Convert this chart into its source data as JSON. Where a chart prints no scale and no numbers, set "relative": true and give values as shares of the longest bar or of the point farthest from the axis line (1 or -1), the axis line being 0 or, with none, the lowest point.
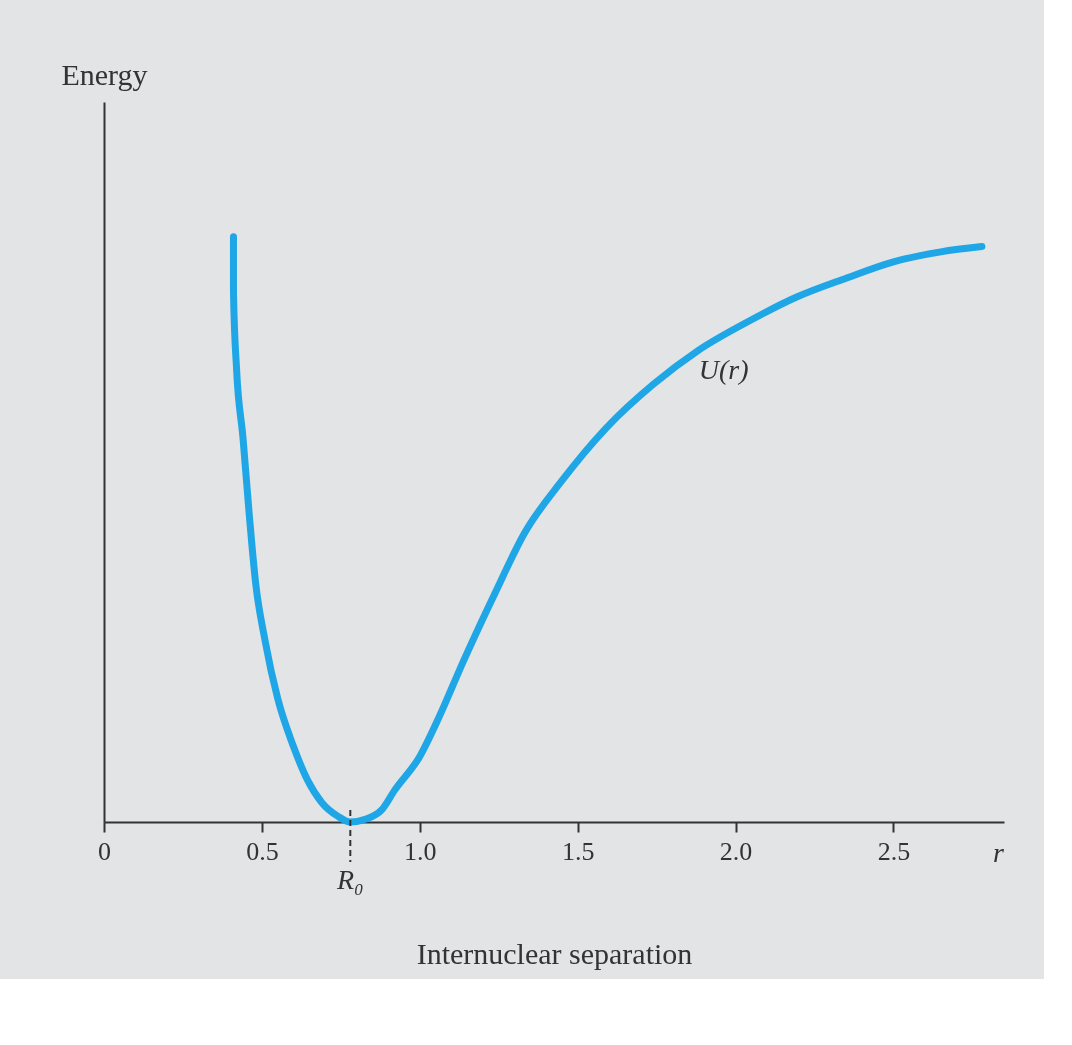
{
  "chart_data": {
    "type": "line",
    "relative": true,
    "xlabel": "Internuclear separation",
    "ylabel": "Energy",
    "x": [
      0.41,
      0.41,
      0.42,
      0.44,
      0.46,
      0.48,
      0.51,
      0.55,
      0.6,
      0.645,
      0.69,
      0.74,
      0.78,
      0.83,
      0.88,
      0.92,
      1.0,
      1.06,
      1.14,
      1.24,
      1.33,
      1.45,
      1.59,
      1.74,
      1.88,
      2.04,
      2.19,
      2.35,
      2.5,
      2.65,
      2.78
    ],
    "series": [
      {
        "color": "#1ea6e6",
        "values": [
          1.0,
          0.904,
          0.772,
          0.657,
          0.525,
          0.409,
          0.31,
          0.211,
          0.129,
          0.071,
          0.033,
          0.01,
          0,
          0.005,
          0.021,
          0.054,
          0.112,
          0.178,
          0.277,
          0.393,
          0.492,
          0.583,
          0.673,
          0.748,
          0.805,
          0.855,
          0.896,
          0.929,
          0.957,
          0.974,
          0.983
        ]
      }
    ],
    "xlim": [
      0,
      2.85
    ],
    "xticks": [
      0,
      0.5,
      {
        "value": 1,
        "label": "1.0"
      },
      1.5,
      {
        "value": 2,
        "label": "2.0"
      },
      2.5
    ],
    "ref_lines": [
      {
        "axis": "x",
        "value": 0.78,
        "label": "R₀",
        "line_style": "dashed"
      }
    ],
    "annotations": [
      "U(r)",
      "r"
    ],
    "grid": false,
    "marker": "none",
    "line_style": "solid",
    "tick_labels": "x"
  }
}
